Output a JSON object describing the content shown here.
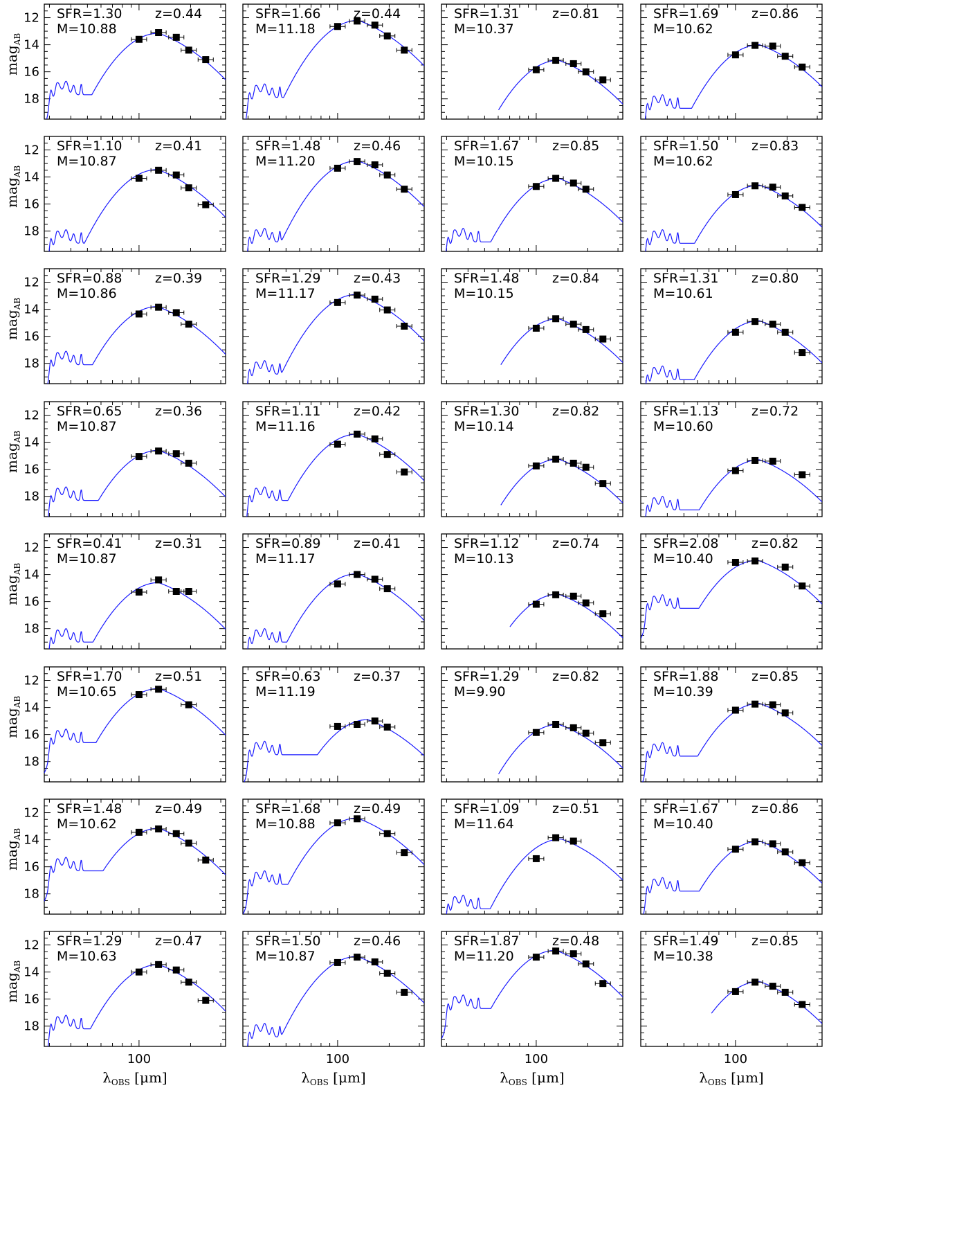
{
  "figure": {
    "ylabel_main": "mag",
    "ylabel_sub": "AB",
    "xlabel_main": "λ",
    "xlabel_sub": "OBS",
    "xlabel_unit": "[μm]",
    "model_color": "#1a1aff",
    "point_color": "#000000"
  },
  "chart_data": [
    {
      "type": "line",
      "sfr_label": "SFR=1.30",
      "z_label": "z=0.44",
      "m_label": "M=10.88",
      "yticks": [
        12,
        14,
        16,
        18
      ],
      "xtick_label": "100",
      "points_x": [
        100,
        130,
        165,
        195,
        245
      ],
      "points_y": [
        13.6,
        13.1,
        13.45,
        14.4,
        15.1
      ],
      "peak_x": 130,
      "peak_y": 13.15,
      "bump_y": 17.7,
      "cutoff_x": 0
    },
    {
      "type": "line",
      "sfr_label": "SFR=1.66",
      "z_label": "z=0.44",
      "m_label": "M=11.18",
      "yticks": [
        12,
        14,
        16,
        18
      ],
      "xtick_label": "100",
      "points_x": [
        100,
        130,
        165,
        195,
        245
      ],
      "points_y": [
        12.65,
        12.25,
        12.55,
        13.35,
        14.4
      ],
      "peak_x": 132,
      "peak_y": 12.2,
      "bump_y": 17.9,
      "cutoff_x": 0
    },
    {
      "type": "line",
      "sfr_label": "SFR=1.31",
      "z_label": "z=0.81",
      "m_label": "M=10.37",
      "yticks": [
        12,
        14,
        16,
        18
      ],
      "xtick_label": "100",
      "points_x": [
        100,
        130,
        165,
        195,
        245
      ],
      "points_y": [
        15.85,
        15.15,
        15.4,
        16.0,
        16.6
      ],
      "peak_x": 135,
      "peak_y": 15.15,
      "bump_y": 19.0,
      "cutoff_x": 60
    },
    {
      "type": "line",
      "sfr_label": "SFR=1.69",
      "z_label": "z=0.86",
      "m_label": "M=10.62",
      "yticks": [
        12,
        14,
        16,
        18
      ],
      "xtick_label": "100",
      "points_x": [
        100,
        130,
        165,
        195,
        245
      ],
      "points_y": [
        14.75,
        14.05,
        14.1,
        14.85,
        15.65
      ],
      "peak_x": 138,
      "peak_y": 14.0,
      "bump_y": 18.7,
      "cutoff_x": 0
    },
    {
      "type": "line",
      "sfr_label": "SFR=1.10",
      "z_label": "z=0.41",
      "m_label": "M=10.87",
      "yticks": [
        12,
        14,
        16,
        18
      ],
      "xtick_label": "100",
      "points_x": [
        100,
        130,
        165,
        195,
        245
      ],
      "points_y": [
        14.1,
        13.5,
        13.85,
        14.8,
        16.05
      ],
      "peak_x": 128,
      "peak_y": 13.45,
      "bump_y": 18.9,
      "cutoff_x": 0
    },
    {
      "type": "line",
      "sfr_label": "SFR=1.48",
      "z_label": "z=0.46",
      "m_label": "M=11.20",
      "yticks": [
        12,
        14,
        16,
        18
      ],
      "xtick_label": "100",
      "points_x": [
        100,
        130,
        165,
        195,
        245
      ],
      "points_y": [
        13.35,
        12.85,
        13.1,
        13.85,
        14.9
      ],
      "peak_x": 131,
      "peak_y": 12.8,
      "bump_y": 18.8,
      "cutoff_x": 0
    },
    {
      "type": "line",
      "sfr_label": "SFR=1.67",
      "z_label": "z=0.85",
      "m_label": "M=10.15",
      "yticks": [
        12,
        14,
        16,
        18
      ],
      "xtick_label": "100",
      "points_x": [
        100,
        130,
        165,
        195
      ],
      "points_y": [
        14.7,
        14.1,
        14.45,
        14.9
      ],
      "peak_x": 135,
      "peak_y": 14.1,
      "bump_y": 18.8,
      "cutoff_x": 0
    },
    {
      "type": "line",
      "sfr_label": "SFR=1.50",
      "z_label": "z=0.83",
      "m_label": "M=10.62",
      "yticks": [
        12,
        14,
        16,
        18
      ],
      "xtick_label": "100",
      "points_x": [
        100,
        130,
        165,
        195,
        245
      ],
      "points_y": [
        15.3,
        14.65,
        14.75,
        15.4,
        16.25
      ],
      "peak_x": 138,
      "peak_y": 14.6,
      "bump_y": 18.9,
      "cutoff_x": 0
    },
    {
      "type": "line",
      "sfr_label": "SFR=0.88",
      "z_label": "z=0.39",
      "m_label": "M=10.86",
      "yticks": [
        12,
        14,
        16,
        18
      ],
      "xtick_label": "100",
      "points_x": [
        100,
        130,
        165,
        195
      ],
      "points_y": [
        14.35,
        13.85,
        14.25,
        15.1
      ],
      "peak_x": 128,
      "peak_y": 13.8,
      "bump_y": 18.1,
      "cutoff_x": 0
    },
    {
      "type": "line",
      "sfr_label": "SFR=1.29",
      "z_label": "z=0.43",
      "m_label": "M=11.17",
      "yticks": [
        12,
        14,
        16,
        18
      ],
      "xtick_label": "100",
      "points_x": [
        100,
        130,
        165,
        195,
        245
      ],
      "points_y": [
        13.5,
        12.95,
        13.25,
        14.05,
        15.25
      ],
      "peak_x": 130,
      "peak_y": 12.9,
      "bump_y": 18.8,
      "cutoff_x": 0
    },
    {
      "type": "line",
      "sfr_label": "SFR=1.48",
      "z_label": "z=0.84",
      "m_label": "M=10.15",
      "yticks": [
        12,
        14,
        16,
        18
      ],
      "xtick_label": "100",
      "points_x": [
        100,
        130,
        165,
        195,
        245
      ],
      "points_y": [
        15.4,
        14.7,
        15.1,
        15.5,
        16.2
      ],
      "peak_x": 135,
      "peak_y": 14.7,
      "bump_y": 19.2,
      "cutoff_x": 62
    },
    {
      "type": "line",
      "sfr_label": "SFR=1.31",
      "z_label": "z=0.80",
      "m_label": "M=10.61",
      "yticks": [
        12,
        14,
        16,
        18
      ],
      "xtick_label": "100",
      "points_x": [
        100,
        130,
        165,
        195,
        245
      ],
      "points_y": [
        15.7,
        14.9,
        15.1,
        15.7,
        17.2
      ],
      "peak_x": 138,
      "peak_y": 14.85,
      "bump_y": 19.2,
      "cutoff_x": 0
    },
    {
      "type": "line",
      "sfr_label": "SFR=0.65",
      "z_label": "z=0.36",
      "m_label": "M=10.87",
      "yticks": [
        12,
        14,
        16,
        18
      ],
      "xtick_label": "100",
      "points_x": [
        100,
        130,
        165,
        195
      ],
      "points_y": [
        15.05,
        14.65,
        14.85,
        15.55
      ],
      "peak_x": 130,
      "peak_y": 14.6,
      "bump_y": 18.3,
      "cutoff_x": 0
    },
    {
      "type": "line",
      "sfr_label": "SFR=1.11",
      "z_label": "z=0.42",
      "m_label": "M=11.16",
      "yticks": [
        12,
        14,
        16,
        18
      ],
      "xtick_label": "100",
      "points_x": [
        100,
        130,
        165,
        195,
        245
      ],
      "points_y": [
        14.15,
        13.4,
        13.75,
        14.9,
        16.2
      ],
      "peak_x": 130,
      "peak_y": 13.4,
      "bump_y": 18.3,
      "cutoff_x": 0
    },
    {
      "type": "line",
      "sfr_label": "SFR=1.30",
      "z_label": "z=0.82",
      "m_label": "M=10.14",
      "yticks": [
        12,
        14,
        16,
        18
      ],
      "xtick_label": "100",
      "points_x": [
        100,
        130,
        165,
        195,
        245
      ],
      "points_y": [
        15.75,
        15.25,
        15.55,
        15.85,
        17.05
      ],
      "peak_x": 135,
      "peak_y": 15.25,
      "bump_y": 19.3,
      "cutoff_x": 62
    },
    {
      "type": "line",
      "sfr_label": "SFR=1.13",
      "z_label": "z=0.72",
      "m_label": "M=10.60",
      "yticks": [
        12,
        14,
        16,
        18
      ],
      "xtick_label": "100",
      "points_x": [
        100,
        130,
        165,
        245
      ],
      "points_y": [
        16.1,
        15.35,
        15.4,
        16.4
      ],
      "peak_x": 138,
      "peak_y": 15.3,
      "bump_y": 19.0,
      "cutoff_x": 0
    },
    {
      "type": "line",
      "sfr_label": "SFR=0.41",
      "z_label": "z=0.31",
      "m_label": "M=10.87",
      "yticks": [
        12,
        14,
        16,
        18
      ],
      "xtick_label": "100",
      "points_x": [
        100,
        130,
        165,
        195
      ],
      "points_y": [
        15.3,
        14.4,
        15.25,
        15.25
      ],
      "peak_x": 130,
      "peak_y": 14.6,
      "bump_y": 19.0,
      "cutoff_x": 0
    },
    {
      "type": "line",
      "sfr_label": "SFR=0.89",
      "z_label": "z=0.41",
      "m_label": "M=11.17",
      "yticks": [
        12,
        14,
        16,
        18
      ],
      "xtick_label": "100",
      "points_x": [
        100,
        130,
        165,
        195
      ],
      "points_y": [
        14.7,
        14.0,
        14.35,
        15.05
      ],
      "peak_x": 130,
      "peak_y": 13.95,
      "bump_y": 19.0,
      "cutoff_x": 0
    },
    {
      "type": "line",
      "sfr_label": "SFR=1.12",
      "z_label": "z=0.74",
      "m_label": "M=10.13",
      "yticks": [
        12,
        14,
        16,
        18
      ],
      "xtick_label": "100",
      "points_x": [
        100,
        130,
        165,
        195,
        245
      ],
      "points_y": [
        16.2,
        15.5,
        15.6,
        16.1,
        16.9
      ],
      "peak_x": 135,
      "peak_y": 15.45,
      "bump_y": 19.4,
      "cutoff_x": 70
    },
    {
      "type": "line",
      "sfr_label": "SFR=2.08",
      "z_label": "z=0.82",
      "m_label": "M=10.40",
      "yticks": [
        12,
        14,
        16,
        18
      ],
      "xtick_label": "100",
      "points_x": [
        100,
        130,
        195,
        245
      ],
      "points_y": [
        13.1,
        13.0,
        13.45,
        14.85
      ],
      "peak_x": 135,
      "peak_y": 12.95,
      "bump_y": 16.5,
      "cutoff_x": 0
    },
    {
      "type": "line",
      "sfr_label": "SFR=1.70",
      "z_label": "z=0.51",
      "m_label": "M=10.65",
      "yticks": [
        12,
        14,
        16,
        18
      ],
      "xtick_label": "100",
      "points_x": [
        100,
        130,
        195
      ],
      "points_y": [
        13.05,
        12.65,
        13.8
      ],
      "peak_x": 130,
      "peak_y": 12.6,
      "bump_y": 16.6,
      "cutoff_x": 0
    },
    {
      "type": "line",
      "sfr_label": "SFR=0.63",
      "z_label": "z=0.37",
      "m_label": "M=11.19",
      "yticks": [
        12,
        14,
        16,
        18
      ],
      "xtick_label": "100",
      "points_x": [
        100,
        130,
        165,
        195
      ],
      "points_y": [
        15.4,
        15.25,
        15.0,
        15.45
      ],
      "peak_x": 150,
      "peak_y": 14.9,
      "bump_y": 17.5,
      "cutoff_x": 0
    },
    {
      "type": "line",
      "sfr_label": "SFR=1.29",
      "z_label": "z=0.82",
      "m_label": "M=9.90",
      "yticks": [
        12,
        14,
        16,
        18
      ],
      "xtick_label": "100",
      "points_x": [
        100,
        130,
        165,
        195,
        245
      ],
      "points_y": [
        15.85,
        15.25,
        15.5,
        15.9,
        16.6
      ],
      "peak_x": 135,
      "peak_y": 15.25,
      "bump_y": 19.0,
      "cutoff_x": 60
    },
    {
      "type": "line",
      "sfr_label": "SFR=1.88",
      "z_label": "z=0.85",
      "m_label": "M=10.39",
      "yticks": [
        12,
        14,
        16,
        18
      ],
      "xtick_label": "100",
      "points_x": [
        100,
        130,
        165,
        195
      ],
      "points_y": [
        14.2,
        13.75,
        13.8,
        14.4
      ],
      "peak_x": 138,
      "peak_y": 13.7,
      "bump_y": 17.6,
      "cutoff_x": 0
    },
    {
      "type": "line",
      "sfr_label": "SFR=1.48",
      "z_label": "z=0.49",
      "m_label": "M=10.62",
      "yticks": [
        12,
        14,
        16,
        18
      ],
      "xtick_label": "100",
      "points_x": [
        100,
        130,
        165,
        195,
        245
      ],
      "points_y": [
        13.45,
        13.2,
        13.55,
        14.25,
        15.5
      ],
      "peak_x": 130,
      "peak_y": 13.15,
      "bump_y": 16.3,
      "cutoff_x": 0
    },
    {
      "type": "line",
      "sfr_label": "SFR=1.68",
      "z_label": "z=0.49",
      "m_label": "M=10.88",
      "yticks": [
        12,
        14,
        16,
        18
      ],
      "xtick_label": "100",
      "points_x": [
        100,
        130,
        195,
        245
      ],
      "points_y": [
        12.75,
        12.45,
        13.55,
        14.95
      ],
      "peak_x": 130,
      "peak_y": 12.4,
      "bump_y": 17.3,
      "cutoff_x": 0
    },
    {
      "type": "line",
      "sfr_label": "SFR=1.09",
      "z_label": "z=0.51",
      "m_label": "M=11.64",
      "yticks": [
        12,
        14,
        16,
        18
      ],
      "xtick_label": "100",
      "points_x": [
        100,
        130,
        165
      ],
      "points_y": [
        15.4,
        13.85,
        14.1
      ],
      "peak_x": 140,
      "peak_y": 13.95,
      "bump_y": 19.1,
      "cutoff_x": 0
    },
    {
      "type": "line",
      "sfr_label": "SFR=1.67",
      "z_label": "z=0.86",
      "m_label": "M=10.40",
      "yticks": [
        12,
        14,
        16,
        18
      ],
      "xtick_label": "100",
      "points_x": [
        100,
        130,
        165,
        195,
        245
      ],
      "points_y": [
        14.7,
        14.15,
        14.3,
        14.9,
        15.7
      ],
      "peak_x": 138,
      "peak_y": 14.1,
      "bump_y": 17.8,
      "cutoff_x": 0
    },
    {
      "type": "line",
      "sfr_label": "SFR=1.29",
      "z_label": "z=0.47",
      "m_label": "M=10.63",
      "yticks": [
        12,
        14,
        16,
        18
      ],
      "xtick_label": "100",
      "points_x": [
        100,
        130,
        165,
        195,
        245
      ],
      "points_y": [
        14.0,
        13.45,
        13.85,
        14.75,
        16.1
      ],
      "peak_x": 130,
      "peak_y": 13.45,
      "bump_y": 18.2,
      "cutoff_x": 0
    },
    {
      "type": "line",
      "sfr_label": "SFR=1.50",
      "z_label": "z=0.46",
      "m_label": "M=10.87",
      "yticks": [
        12,
        14,
        16,
        18
      ],
      "xtick_label": "100",
      "points_x": [
        100,
        130,
        165,
        195,
        245
      ],
      "points_y": [
        13.3,
        12.9,
        13.25,
        14.1,
        15.5
      ],
      "peak_x": 130,
      "peak_y": 12.85,
      "bump_y": 18.8,
      "cutoff_x": 0
    },
    {
      "type": "line",
      "sfr_label": "SFR=1.87",
      "z_label": "z=0.48",
      "m_label": "M=11.20",
      "yticks": [
        12,
        14,
        16,
        18
      ],
      "xtick_label": "100",
      "points_x": [
        100,
        130,
        165,
        195,
        245
      ],
      "points_y": [
        12.9,
        12.45,
        12.65,
        13.4,
        14.85
      ],
      "peak_x": 130,
      "peak_y": 12.4,
      "bump_y": 16.7,
      "cutoff_x": 0
    },
    {
      "type": "line",
      "sfr_label": "SFR=1.49",
      "z_label": "z=0.85",
      "m_label": "M=10.38",
      "yticks": [
        12,
        14,
        16,
        18
      ],
      "xtick_label": "100",
      "points_x": [
        100,
        130,
        165,
        195,
        245
      ],
      "points_y": [
        15.45,
        14.75,
        15.05,
        15.5,
        16.4
      ],
      "peak_x": 138,
      "peak_y": 14.7,
      "bump_y": 19.5,
      "cutoff_x": 72
    }
  ]
}
